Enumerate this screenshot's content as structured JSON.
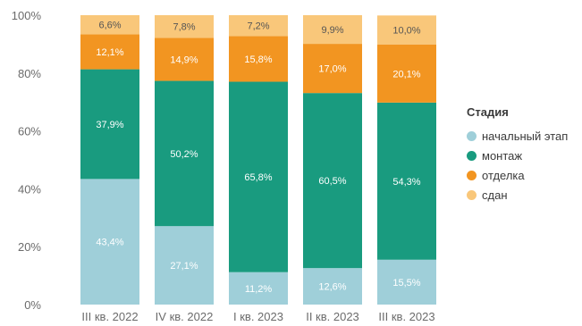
{
  "chart_data": {
    "type": "bar",
    "stacked": true,
    "categories": [
      "III кв. 2022",
      "IV кв. 2022",
      "I кв. 2023",
      "II кв. 2023",
      "III кв. 2023"
    ],
    "series": [
      {
        "name": "начальный этап",
        "color": "#9fcfd9",
        "values": [
          43.4,
          27.1,
          11.2,
          12.6,
          15.5
        ],
        "labels": [
          "43,4%",
          "27,1%",
          "11,2%",
          "12,6%",
          "15,5%"
        ]
      },
      {
        "name": "монтаж",
        "color": "#199b7f",
        "values": [
          37.9,
          50.2,
          65.8,
          60.5,
          54.3
        ],
        "labels": [
          "37,9%",
          "50,2%",
          "65,8%",
          "60,5%",
          "54,3%"
        ]
      },
      {
        "name": "отделка",
        "color": "#f29521",
        "values": [
          12.1,
          14.9,
          15.8,
          17.0,
          20.1
        ],
        "labels": [
          "12,1%",
          "14,9%",
          "15,8%",
          "17,0%",
          "20,1%"
        ]
      },
      {
        "name": "сдан",
        "color": "#f9c77a",
        "values": [
          6.6,
          7.8,
          7.2,
          9.9,
          10.0
        ],
        "labels": [
          "6,6%",
          "7,8%",
          "7,2%",
          "9,9%",
          "10,0%"
        ]
      }
    ],
    "ylim": [
      0,
      100
    ],
    "yticks": [
      "0%",
      "20%",
      "40%",
      "60%",
      "80%",
      "100%"
    ],
    "legend_title": "Стадия",
    "legend_position": "right",
    "grid": false
  }
}
